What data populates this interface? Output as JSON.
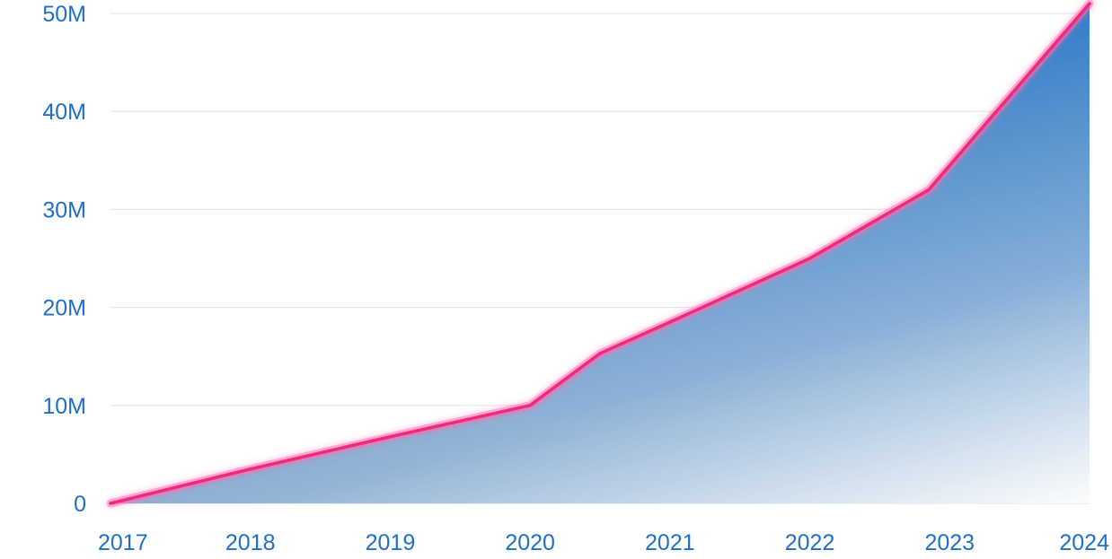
{
  "chart_data": {
    "type": "area",
    "title": "",
    "xlabel": "",
    "ylabel": "",
    "x_ticks": [
      "2017",
      "2018",
      "2019",
      "2020",
      "2021",
      "2022",
      "2023",
      "2024"
    ],
    "y_ticks": [
      "0",
      "10M",
      "20M",
      "30M",
      "40M",
      "50M"
    ],
    "xlim": [
      2017,
      2024
    ],
    "ylim": [
      0,
      50000000
    ],
    "grid": true,
    "legend": "none",
    "series": [
      {
        "x": [
          2017.0,
          2018.0,
          2019.0,
          2020.0,
          2020.5,
          2021.0,
          2022.0,
          2022.85,
          2024.0
        ],
        "values": [
          0,
          3500000,
          6800000,
          10000000,
          15300000,
          18500000,
          25000000,
          32000000,
          51000000
        ]
      }
    ]
  },
  "colors": {
    "axis_text": "#1f6fc9",
    "grid": "#dfe8f2",
    "line": "#ee2a7b",
    "line_glow": "#ff6ab0",
    "fill_top": "#2a78c6",
    "fill_mid": "#5b8ec1",
    "fill_fade": "#f7f8fb"
  }
}
